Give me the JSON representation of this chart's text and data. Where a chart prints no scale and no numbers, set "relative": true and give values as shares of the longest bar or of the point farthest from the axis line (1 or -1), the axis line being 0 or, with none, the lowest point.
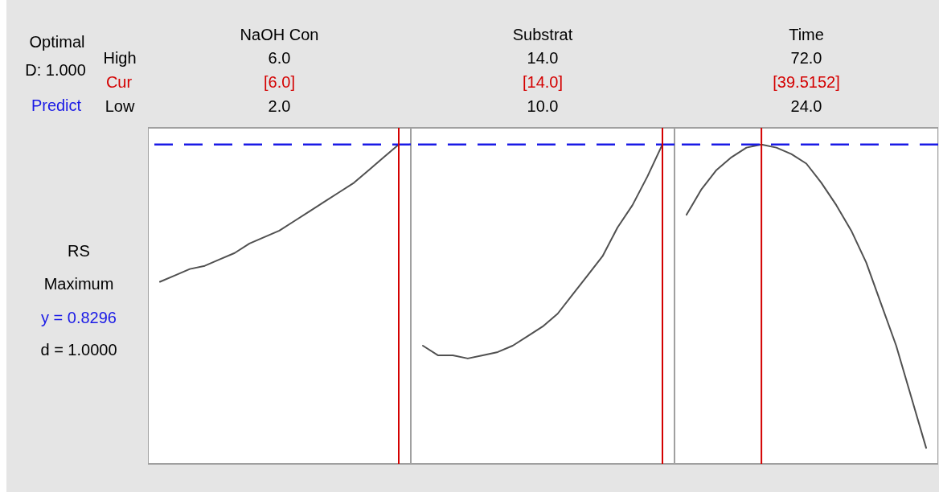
{
  "chart_data": [
    {
      "type": "other",
      "annotations": [
        "Optimal",
        "D: 1.000",
        "Predict",
        "High",
        "Cur",
        "Low",
        "RS",
        "Maximum",
        "y = 0.8296",
        "d = 1.0000"
      ]
    },
    {
      "type": "line",
      "title": "NaOH Con",
      "annotations": [
        "6.0",
        "[6.0]",
        "2.0"
      ],
      "categories": [
        null,
        null,
        null,
        null,
        null,
        null,
        null,
        null,
        null,
        null,
        null,
        null,
        null,
        null,
        null,
        null,
        null
      ],
      "values": [
        0.57,
        0.59,
        0.61,
        0.62,
        0.64,
        0.66,
        0.69,
        0.71,
        0.73,
        0.76,
        0.79,
        0.82,
        0.85,
        0.88,
        0.92,
        0.96,
        1
      ],
      "color": "#505050",
      "relative": true,
      "ref_lines": [
        {
          "axis": "y",
          "value": 1,
          "color": "#1a1ae6",
          "line_style": "dashed"
        }
      ]
    },
    {
      "type": "line",
      "title": "Substrat",
      "annotations": [
        "14.0",
        "[14.0]",
        "10.0"
      ],
      "categories": [
        null,
        null,
        null,
        null,
        null,
        null,
        null,
        null,
        null,
        null,
        null,
        null,
        null,
        null,
        null,
        null,
        null
      ],
      "values": [
        0.37,
        0.34,
        0.34,
        0.33,
        0.34,
        0.35,
        0.37,
        0.4,
        0.43,
        0.47,
        0.53,
        0.59,
        0.65,
        0.74,
        0.81,
        0.9,
        1
      ],
      "color": "#505050",
      "relative": true,
      "ref_lines": [
        {
          "axis": "y",
          "value": 1,
          "color": "#1a1ae6",
          "line_style": "dashed"
        }
      ]
    },
    {
      "type": "line",
      "title": "Time",
      "annotations": [
        "72.0",
        "[39.5152]",
        "24.0"
      ],
      "categories": [
        null,
        null,
        null,
        null,
        null,
        null,
        null,
        null,
        null,
        null,
        null,
        null,
        null,
        null,
        null,
        null,
        null
      ],
      "values": [
        0.78,
        0.86,
        0.92,
        0.96,
        0.99,
        1,
        0.99,
        0.97,
        0.94,
        0.88,
        0.81,
        0.73,
        0.63,
        0.5,
        0.37,
        0.21,
        0.05
      ],
      "color": "#505050",
      "relative": true,
      "ref_lines": [
        {
          "axis": "y",
          "value": 1,
          "color": "#1a1ae6",
          "line_style": "dashed"
        }
      ]
    }
  ]
}
